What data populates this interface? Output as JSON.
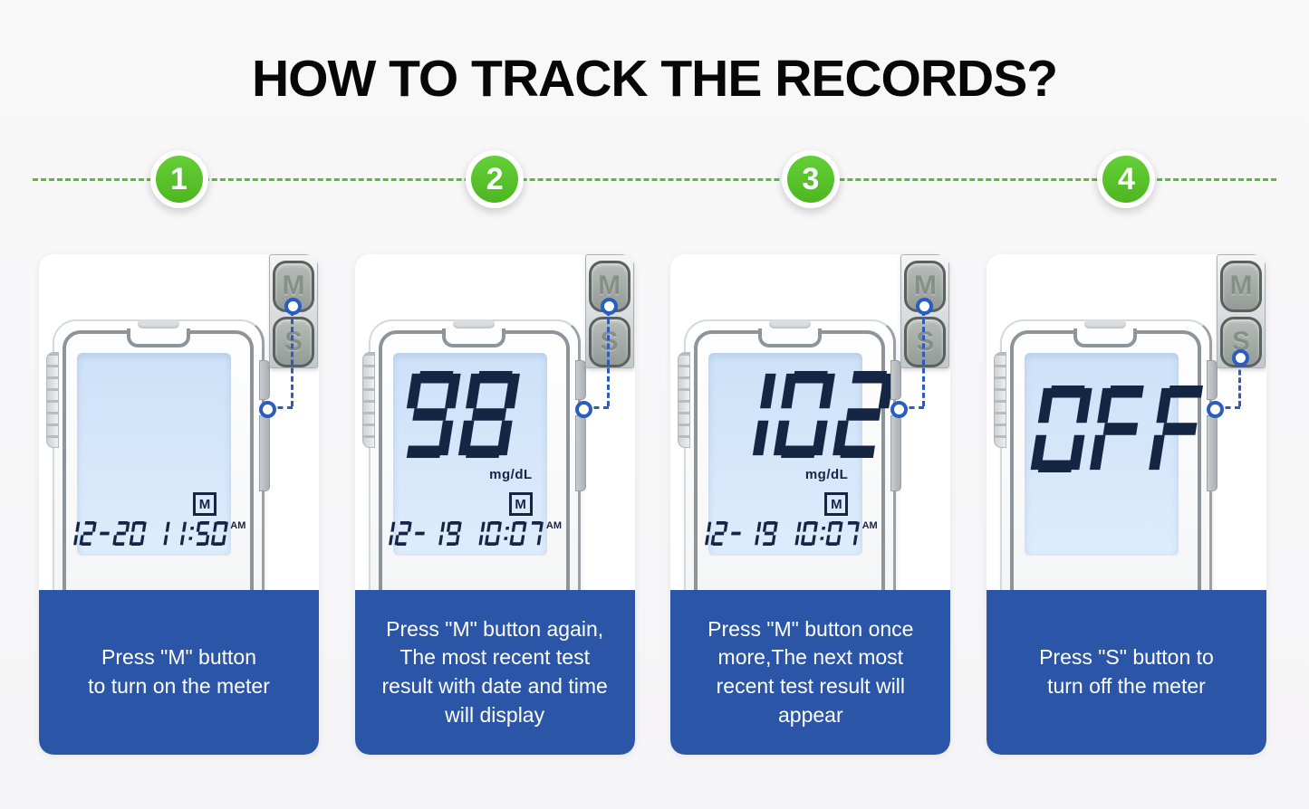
{
  "title": "HOW TO TRACK THE RECORDS?",
  "colors": {
    "accent_green": "#56BE2B",
    "band_blue": "#2B55A6",
    "lcd_blue": "#D9E8FA",
    "digit_navy": "#152544",
    "connector_blue": "#2B5CC0"
  },
  "steps": [
    {
      "number": "1",
      "caption": "Press \"M\" button\nto turn on the meter",
      "button_m": "M",
      "button_s": "S",
      "pressed_button": "M",
      "display": {
        "value": "",
        "unit": "",
        "memory_icon": "M",
        "datetime": "12-20 11:50",
        "ampm": "AM"
      }
    },
    {
      "number": "2",
      "caption": "Press \"M\" button again,\nThe most recent test\nresult with date and time\nwill display",
      "button_m": "M",
      "button_s": "S",
      "pressed_button": "M",
      "display": {
        "value": "98",
        "unit": "mg/dL",
        "memory_icon": "M",
        "datetime": "12-19 10:07",
        "ampm": "AM"
      }
    },
    {
      "number": "3",
      "caption": "Press \"M\" button once\nmore,The next most\nrecent test result will\nappear",
      "button_m": "M",
      "button_s": "S",
      "pressed_button": "M",
      "display": {
        "value": "102",
        "unit": "mg/dL",
        "memory_icon": "M",
        "datetime": "12-19 10:07",
        "ampm": "AM"
      }
    },
    {
      "number": "4",
      "caption": "Press \"S\" button to\nturn off the meter",
      "button_m": "M",
      "button_s": "S",
      "pressed_button": "S",
      "display": {
        "value": "OFF",
        "unit": "",
        "memory_icon": "",
        "datetime": "",
        "ampm": ""
      }
    }
  ]
}
